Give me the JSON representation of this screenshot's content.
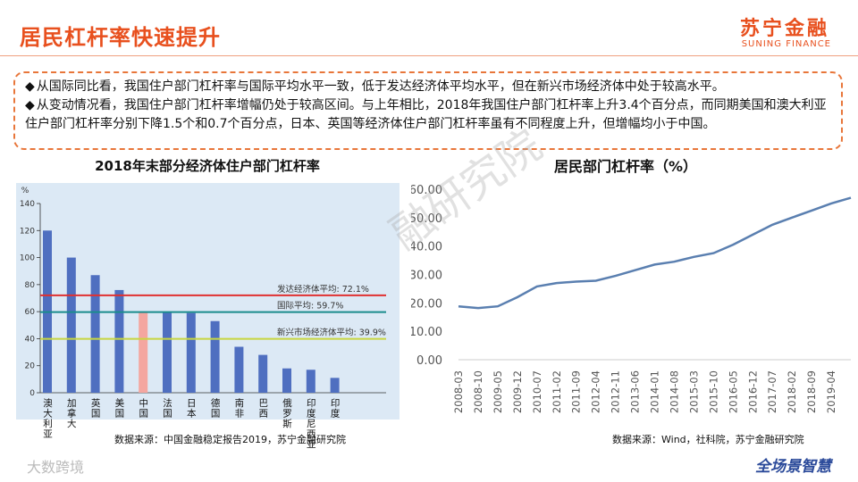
{
  "header": {
    "title": "居民杠杆率快速提升",
    "logo": "苏宁金融",
    "logo_en": "SUNING FINANCE"
  },
  "bullets": [
    "从国际同比看，我国住户部门杠杆率与国际平均水平一致，低于发达经济体平均水平，但在新兴市场经济体中处于较高水平。",
    "从变动情况看，我国住户部门杠杆率增幅仍处于较高区间。与上年相比，2018年我国住户部门杠杆率上升3.4个百分点，而同期美国和澳大利亚住户部门杠杆率分别下降1.5个和0.7个百分点，日本、英国等经济体住户部门杠杆率虽有不同程度上升，但增幅均小于中国。"
  ],
  "chart_data": [
    {
      "type": "bar",
      "title": "2018年末部分经济体住户部门杠杆率",
      "y_label": "%",
      "categories": [
        "澳大利亚",
        "加拿大",
        "英国",
        "美国",
        "中国",
        "法国",
        "日本",
        "德国",
        "南非",
        "巴西",
        "俄罗斯",
        "印度尼西亚",
        "印度"
      ],
      "values": [
        120,
        100,
        87,
        76,
        60,
        60,
        59,
        53,
        34,
        28,
        18,
        17,
        11
      ],
      "colors": [
        "#4f6fc0",
        "#4f6fc0",
        "#4f6fc0",
        "#4f6fc0",
        "#f4a6a0",
        "#4f6fc0",
        "#4f6fc0",
        "#4f6fc0",
        "#4f6fc0",
        "#4f6fc0",
        "#4f6fc0",
        "#4f6fc0",
        "#4f6fc0"
      ],
      "ylim": [
        0,
        140
      ],
      "yticks": [
        0,
        20,
        40,
        60,
        80,
        100,
        120,
        140
      ],
      "references": [
        {
          "label": "发达经济体平均: 72.1%",
          "value": 72.1,
          "color": "#e03030"
        },
        {
          "label": "国际平均: 59.7%",
          "value": 59.7,
          "color": "#1a8c8c"
        },
        {
          "label": "新兴市场经济体平均: 39.9%",
          "value": 39.9,
          "color": "#c8d640"
        }
      ],
      "source": "数据来源：中国金融稳定报告2019，苏宁金融研究院"
    },
    {
      "type": "line",
      "title": "居民部门杠杆率（%）",
      "categories": [
        "2008-03",
        "2008-10",
        "2009-05",
        "2009-12",
        "2010-07",
        "2011-02",
        "2011-09",
        "2012-04",
        "2012-11",
        "2013-06",
        "2014-01",
        "2014-08",
        "2015-03",
        "2015-10",
        "2016-05",
        "2016-12",
        "2017-07",
        "2018-02",
        "2018-09",
        "2019-04",
        null
      ],
      "values": [
        18.8,
        18.2,
        18.8,
        22,
        25.8,
        27,
        27.5,
        27.8,
        29.5,
        31.5,
        33.5,
        34.5,
        36.2,
        37.5,
        40.5,
        44,
        47.5,
        50,
        52.5,
        55,
        57
      ],
      "color": "#5a7fb0",
      "ylim": [
        0,
        60
      ],
      "yticks": [
        {
          "value": 0,
          "label": "0.00"
        },
        {
          "value": 10,
          "label": "10.00"
        },
        {
          "value": 20,
          "label": "20.00"
        },
        {
          "value": 30,
          "label": "30.00"
        },
        {
          "value": 40,
          "label": "40.00"
        },
        {
          "value": 50,
          "label": "50.00"
        },
        {
          "value": 60,
          "label": "60.00"
        }
      ],
      "source": "数据来源：Wind，社科院，苏宁金融研究院"
    }
  ],
  "watermark": "融研究院",
  "footer": {
    "left": "大数跨境",
    "right": "全场景智慧"
  }
}
